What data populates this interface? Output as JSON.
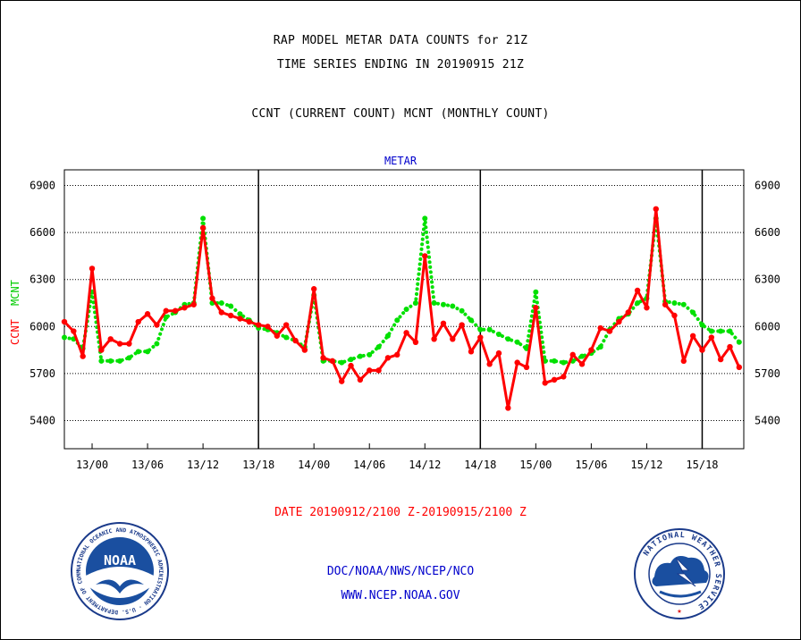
{
  "header": {
    "title_line1": "RAP MODEL METAR DATA COUNTS for 21Z",
    "title_line2": "TIME SERIES ENDING IN 20190915 21Z",
    "title_line3": "CCNT (CURRENT COUNT) MCNT (MONTHLY COUNT)"
  },
  "footer": {
    "date_range": "DATE 20190912/2100 Z-20190915/2100 Z",
    "org": "DOC/NOAA/NWS/NCEP/NCO",
    "url": "WWW.NCEP.NOAA.GOV"
  },
  "logos": {
    "noaa_text": "NOAA",
    "noaa_ring": "NATIONAL OCEANIC AND ATMOSPHERIC ADMINISTRATION · U.S. DEPARTMENT OF COMMERCE ·",
    "nws_ring": "NATIONAL WEATHER SERVICE"
  },
  "colors": {
    "ccnt": "#ff0000",
    "mcnt": "#00e000",
    "panel_title": "#0000cc"
  },
  "chart_data": {
    "type": "line",
    "panel_title": "METAR",
    "ylabel_parts": [
      "CCNT",
      "MCNT"
    ],
    "ylim": [
      5220,
      7000
    ],
    "xlim": [
      0,
      73.5
    ],
    "yticks": [
      5400,
      5700,
      6000,
      6300,
      6600,
      6900
    ],
    "ytick_labels": [
      "5400",
      "5700",
      "6000",
      "6300",
      "6600",
      "6900"
    ],
    "xticks": [
      3,
      9,
      15,
      21,
      27,
      33,
      39,
      45,
      51,
      57,
      63,
      69
    ],
    "xtick_labels": [
      "13/00",
      "13/06",
      "13/12",
      "13/18",
      "14/00",
      "14/06",
      "14/12",
      "14/18",
      "15/00",
      "15/06",
      "15/12",
      "15/18"
    ],
    "day_separators": [
      21,
      45,
      69
    ],
    "grid": "horizontal-dotted",
    "series": [
      {
        "name": "CCNT",
        "color": "#ff0000",
        "x": [
          0,
          1,
          2,
          3,
          4,
          5,
          6,
          7,
          8,
          9,
          10,
          11,
          12,
          13,
          14,
          15,
          16,
          17,
          18,
          19,
          20,
          21,
          22,
          23,
          24,
          25,
          26,
          27,
          28,
          29,
          30,
          31,
          32,
          33,
          34,
          35,
          36,
          37,
          38,
          39,
          40,
          41,
          42,
          43,
          44,
          45,
          46,
          47,
          48,
          49,
          50,
          51,
          52,
          53,
          54,
          55,
          56,
          57,
          58,
          59,
          60,
          61,
          62,
          63,
          64,
          65,
          66,
          67,
          68,
          69,
          70,
          71,
          72,
          73
        ],
        "values": [
          6030,
          5970,
          5810,
          6370,
          5850,
          5920,
          5890,
          5890,
          6030,
          6080,
          6010,
          6100,
          6100,
          6120,
          6140,
          6630,
          6180,
          6090,
          6070,
          6050,
          6030,
          6010,
          6000,
          5940,
          6010,
          5910,
          5850,
          6240,
          5800,
          5780,
          5650,
          5750,
          5660,
          5720,
          5720,
          5800,
          5820,
          5960,
          5900,
          6450,
          5920,
          6020,
          5920,
          6010,
          5840,
          5930,
          5760,
          5830,
          5480,
          5770,
          5740,
          6120,
          5640,
          5660,
          5680,
          5820,
          5760,
          5850,
          5990,
          5970,
          6030,
          6090,
          6230,
          6120,
          6750,
          6140,
          6070,
          5780,
          5940,
          5850,
          5930,
          5790,
          5870,
          5740
        ]
      },
      {
        "name": "MCNT",
        "color": "#00e000",
        "x": [
          0,
          1,
          2,
          3,
          4,
          5,
          6,
          7,
          8,
          9,
          10,
          11,
          12,
          13,
          14,
          15,
          16,
          17,
          18,
          19,
          20,
          21,
          22,
          23,
          24,
          25,
          26,
          27,
          28,
          29,
          30,
          31,
          32,
          33,
          34,
          35,
          36,
          37,
          38,
          39,
          40,
          41,
          42,
          43,
          44,
          45,
          46,
          47,
          48,
          49,
          50,
          51,
          52,
          53,
          54,
          55,
          56,
          57,
          58,
          59,
          60,
          61,
          62,
          63,
          64,
          65,
          66,
          67,
          68,
          69,
          70,
          71,
          72,
          73
        ],
        "values": [
          5930,
          5920,
          5860,
          6220,
          5780,
          5780,
          5780,
          5800,
          5840,
          5840,
          5890,
          6060,
          6090,
          6140,
          6150,
          6690,
          6150,
          6150,
          6130,
          6080,
          6040,
          5990,
          5980,
          5960,
          5930,
          5910,
          5870,
          6200,
          5780,
          5780,
          5770,
          5790,
          5810,
          5820,
          5870,
          5940,
          6040,
          6110,
          6150,
          6690,
          6150,
          6140,
          6130,
          6100,
          6040,
          5980,
          5980,
          5950,
          5920,
          5900,
          5860,
          6220,
          5780,
          5780,
          5770,
          5780,
          5810,
          5830,
          5870,
          5980,
          6050,
          6080,
          6150,
          6180,
          6690,
          6160,
          6150,
          6140,
          6090,
          6010,
          5970,
          5970,
          5970,
          5900
        ]
      }
    ]
  }
}
